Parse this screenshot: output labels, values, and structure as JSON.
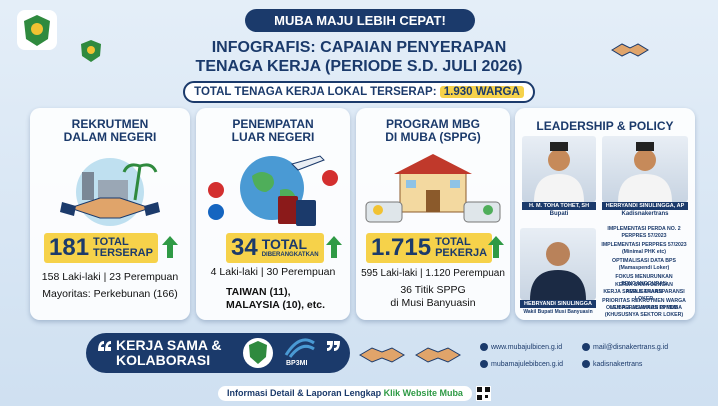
{
  "header": {
    "banner": "MUBA MAJU LEBIH CEPAT!",
    "title": [
      "INFOGRAFIS: CAPAIAN PENYERAPAN",
      "TENAGA KERJA (PERIODE S.D. JULI 2026)"
    ]
  },
  "total": {
    "label": "TOTAL TENAGA KERJA LOKAL TERSERAP:",
    "value": "1.930 WARGA"
  },
  "cards": [
    {
      "title": [
        "REKRUTMEN",
        "DALAM NEGERI"
      ],
      "number": "181",
      "unit": [
        "TOTAL",
        "TERSERAP"
      ],
      "details": [
        "158 Laki-laki | 23 Perempuan",
        "Mayoritas: Perkebunan (166)"
      ]
    },
    {
      "title": [
        "PENEMPATAN",
        "LUAR NEGERI"
      ],
      "number": "34",
      "unit": [
        "TOTAL",
        "DIBERANGKATKAN"
      ],
      "details": [
        "4 Laki-laki | 30 Perempuan",
        "TAIWAN (11),",
        "MALAYSIA (10), etc."
      ]
    },
    {
      "title": [
        "PROGRAM MBG",
        "DI MUBA (SPPG)"
      ],
      "number": "1.715",
      "unit": [
        "TOTAL",
        "PEKERJA"
      ],
      "details": [
        "595 Laki-laki | 1.120 Perempuan",
        "36 Titik SPPG",
        "di Musi Banyuasin"
      ]
    }
  ],
  "leadership": {
    "title": "LEADERSHIP & POLICY",
    "people": [
      {
        "name": "H. M. TOHA TOHET, SH",
        "role": "Bupati"
      },
      {
        "name": "HERRYANDI SINULINGGA, AP",
        "role": "Kadisnakertrans"
      },
      {
        "name": "HEBRYANDI SINULINGGA",
        "role": "Wakil Bupati Musi Banyuasin"
      }
    ],
    "policies": [
      "IMPLEMENTASI PERDA NO. 2 PERPRES 57/2023",
      "IMPLEMENTASI PERPRES 57/2023",
      "(Minimal PHK etc)",
      "OPTIMALISASI DATA BPS",
      "(Mamaspendi Loker)",
      "FOKUS MENURUNKAN PENGANGGURAN",
      "KERJA SAMA DENGAN PERUSAHAAN",
      "KERJA SAMA & TRANSPARANSI LOKER",
      "PRIORITAS REKRUTMEN WARGA MUBA & ALUMNUS PPKDM",
      "OLEH PERUSAHAAN DI MUBA (KHUSUSNYA SEKTOR LOKER)"
    ]
  },
  "footer": {
    "slogan": [
      "KERJA SAMA &",
      "KOLABORASI"
    ],
    "partner": "BP3MI",
    "contacts": [
      "www.mubajulbicen.g.id",
      "mail@disnakertrans.g.id",
      "mubamajulebibcen.g.id",
      "kadisnakertrans"
    ]
  },
  "bottom": {
    "text": "Informasi Detail & Laporan Lengkap",
    "link": "Klik Website Muba"
  }
}
